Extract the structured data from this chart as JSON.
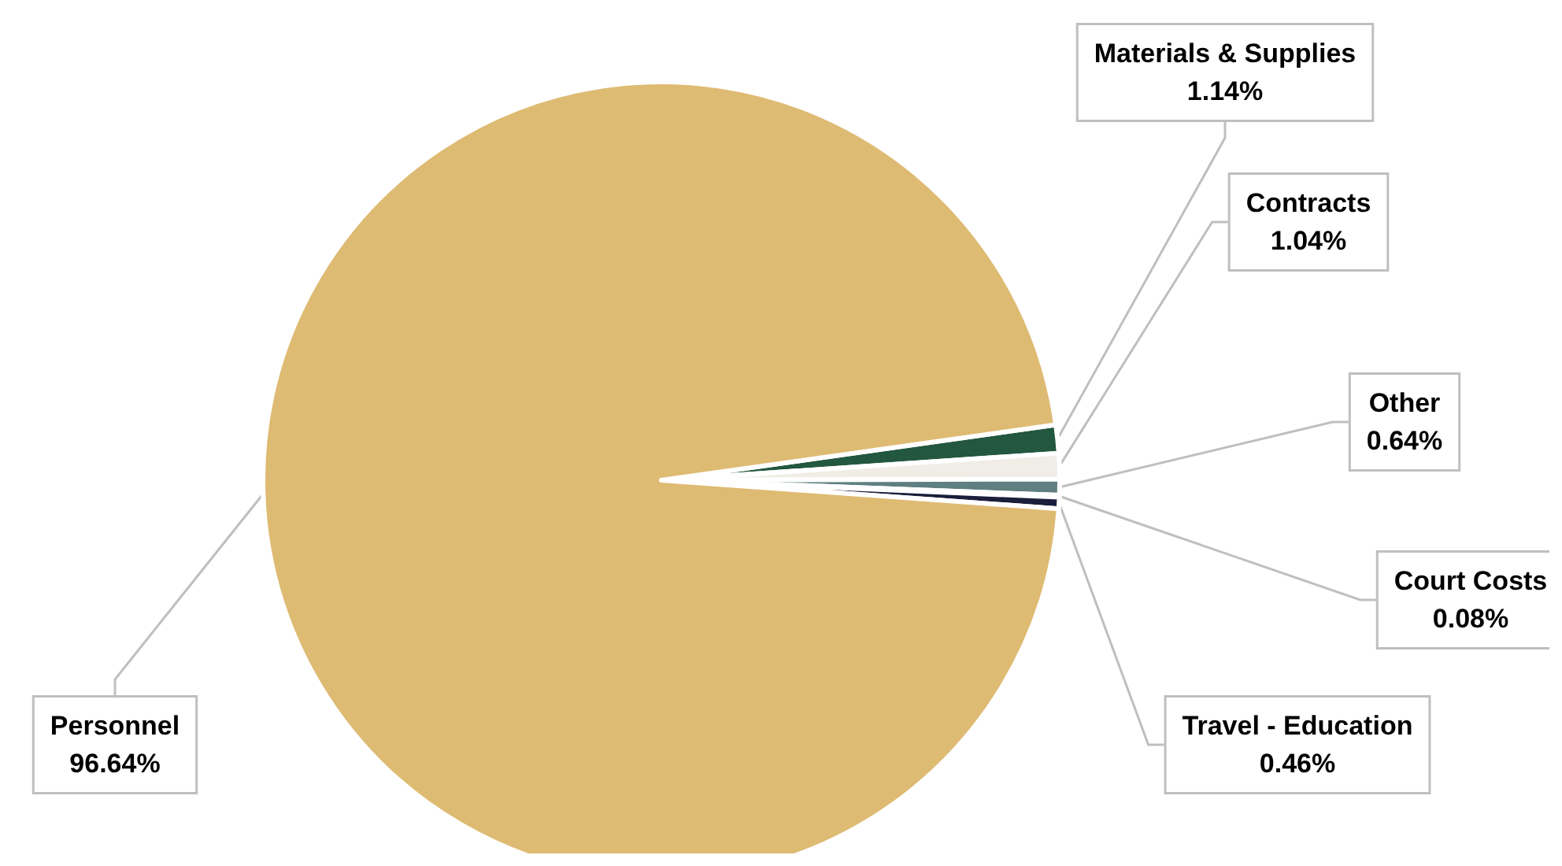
{
  "chart_data": {
    "type": "pie",
    "categories": [
      "Materials & Supplies",
      "Contracts",
      "Other",
      "Court Costs",
      "Travel - Education",
      "Personnel"
    ],
    "values": [
      1.14,
      1.04,
      0.64,
      0.08,
      0.46,
      96.64
    ],
    "value_labels": [
      "1.14%",
      "1.04%",
      "0.64%",
      "0.08%",
      "0.46%",
      "96.64%"
    ],
    "colors": [
      "#235740",
      "#efede6",
      "#5f7f80",
      "#8c8c8c",
      "#1b1f3b",
      "#debb73"
    ],
    "legend": false
  }
}
